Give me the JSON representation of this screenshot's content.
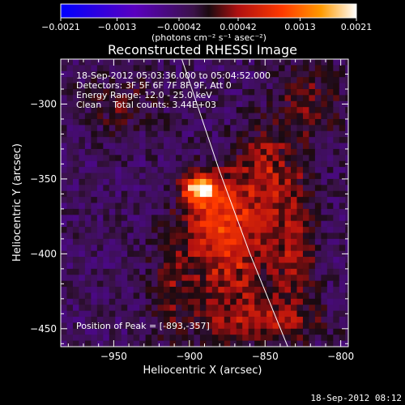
{
  "chart_data": {
    "type": "heatmap",
    "title": "Reconstructed RHESSI Image",
    "xlabel": "Heliocentric X (arcsec)",
    "ylabel": "Heliocentric Y (arcsec)",
    "xlim": [
      -985,
      -795
    ],
    "ylim": [
      -462,
      -270
    ],
    "x_ticks": [
      -950,
      -900,
      -850,
      -800
    ],
    "y_ticks": [
      -300,
      -350,
      -400,
      -450
    ],
    "colorbar": {
      "range": [
        -0.0021,
        0.0021
      ],
      "tick_values": [
        -0.0021,
        -0.0013,
        -0.00042,
        0.00042,
        0.0013,
        0.0021
      ],
      "tick_labels": [
        "-0.0021",
        "-0.0013",
        "-0.00042",
        "0.00042",
        "0.0013",
        "0.0021"
      ],
      "units": "(photons cm⁻² s⁻¹ asec⁻²)"
    },
    "info_lines": [
      "18-Sep-2012 05:03:36.000 to 05:04:52.000",
      "Detectors: 3F 5F 6F 7F 8F 9F, Att 0",
      "Energy Range: 12.0 - 25.0 keV",
      "Clean    Total counts: 3.44E+03"
    ],
    "peak_label": "Position of Peak = [-893,-357]",
    "peak": {
      "x": -893,
      "y": -357,
      "value": 0.0021
    },
    "solar_limb": [
      [
        -905,
        -270
      ],
      [
        -880,
        -345
      ],
      [
        -860,
        -400
      ],
      [
        -835,
        -462
      ]
    ],
    "sources": [
      {
        "x": -893,
        "y": -357,
        "sx": 7,
        "sy": 6,
        "amp": 0.0021
      },
      {
        "x": -880,
        "y": -370,
        "sx": 16,
        "sy": 18,
        "amp": 0.001
      },
      {
        "x": -872,
        "y": -405,
        "sx": 18,
        "sy": 22,
        "amp": 0.0009
      },
      {
        "x": -850,
        "y": -345,
        "sx": 14,
        "sy": 22,
        "amp": 0.00075
      },
      {
        "x": -830,
        "y": -395,
        "sx": 10,
        "sy": 30,
        "amp": 0.0007
      },
      {
        "x": -855,
        "y": -445,
        "sx": 28,
        "sy": 10,
        "amp": 0.0007
      },
      {
        "x": -910,
        "y": -420,
        "sx": 12,
        "sy": 25,
        "amp": 0.00045
      },
      {
        "x": -945,
        "y": -300,
        "sx": 20,
        "sy": 14,
        "amp": 0.00035
      },
      {
        "x": -820,
        "y": -300,
        "sx": 14,
        "sy": 18,
        "amp": 0.0005
      }
    ]
  },
  "footer_timestamp": "18-Sep-2012 08:12"
}
